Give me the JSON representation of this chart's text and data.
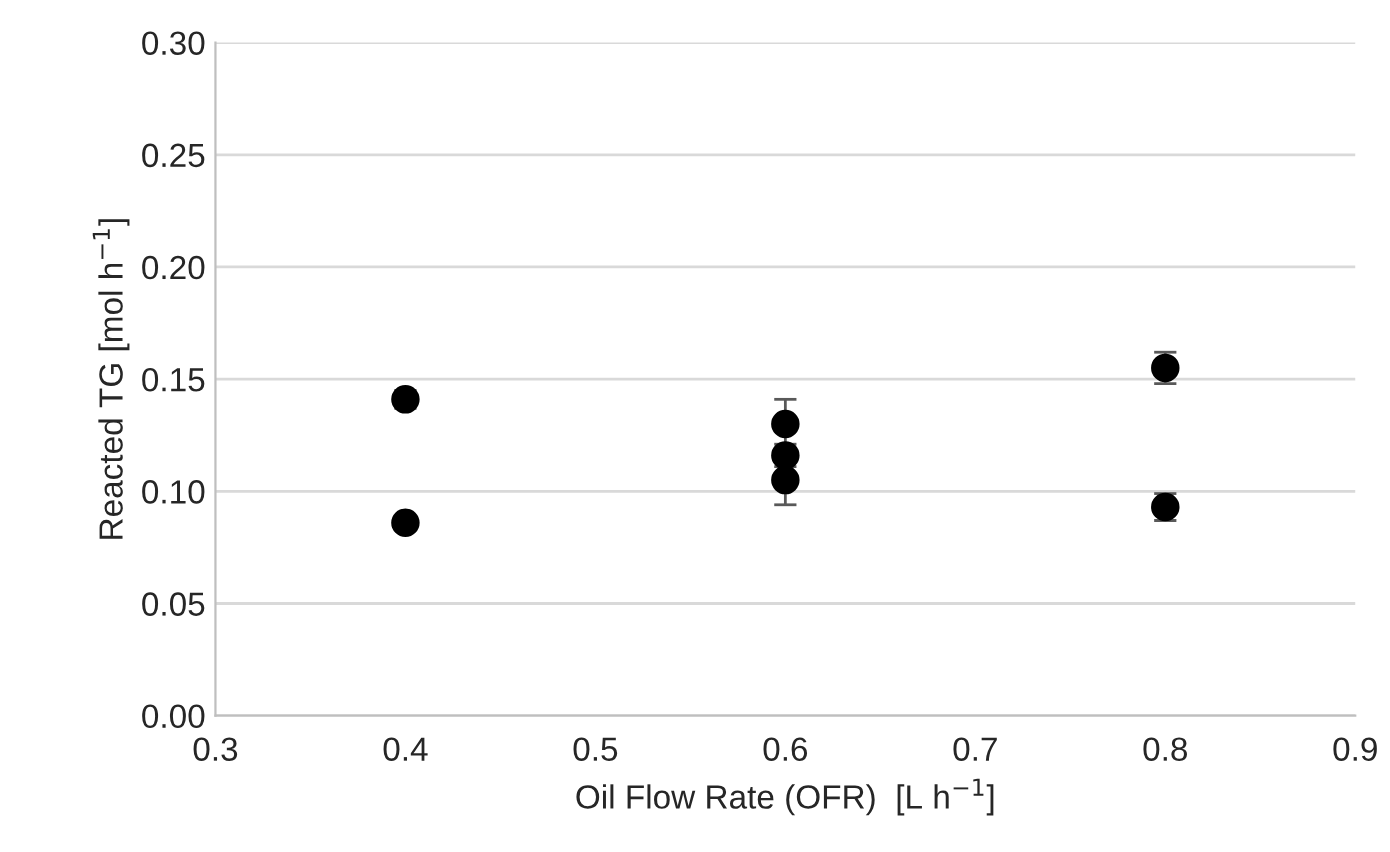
{
  "chart_data": {
    "type": "scatter",
    "xlabel": "Oil Flow Rate (OFR)  [L h$^{−1}$]",
    "ylabel": "Reacted TG [mol h$^{−1}$]",
    "x": [
      0.4,
      0.4,
      0.6,
      0.6,
      0.6,
      0.8,
      0.8
    ],
    "series": [
      {
        "color": "#000000",
        "values": [
          0.141,
          0.086,
          0.13,
          0.116,
          0.105,
          0.155,
          0.093
        ],
        "errors": [
          0.004,
          0.002,
          0.011,
          0.005,
          0.011,
          0.007,
          0.006
        ]
      }
    ],
    "xlim": [
      0.3,
      0.9
    ],
    "xticks": [
      {
        "value": 0.3,
        "label": "0.3"
      },
      {
        "value": 0.4,
        "label": "0.4"
      },
      {
        "value": 0.5,
        "label": "0.5"
      },
      {
        "value": 0.6,
        "label": "0.6"
      },
      {
        "value": 0.7,
        "label": "0.7"
      },
      {
        "value": 0.8,
        "label": "0.8"
      },
      {
        "value": 0.9,
        "label": "0.9"
      }
    ],
    "ylim": [
      0,
      0.3
    ],
    "yticks": [
      {
        "value": 0,
        "label": "0.00"
      },
      {
        "value": 0.05,
        "label": "0.05"
      },
      {
        "value": 0.1,
        "label": "0.10"
      },
      {
        "value": 0.15,
        "label": "0.15"
      },
      {
        "value": 0.2,
        "label": "0.20"
      },
      {
        "value": 0.25,
        "label": "0.25"
      },
      {
        "value": 0.3,
        "label": "0.30"
      }
    ],
    "grid": "y",
    "marker": "circle"
  }
}
